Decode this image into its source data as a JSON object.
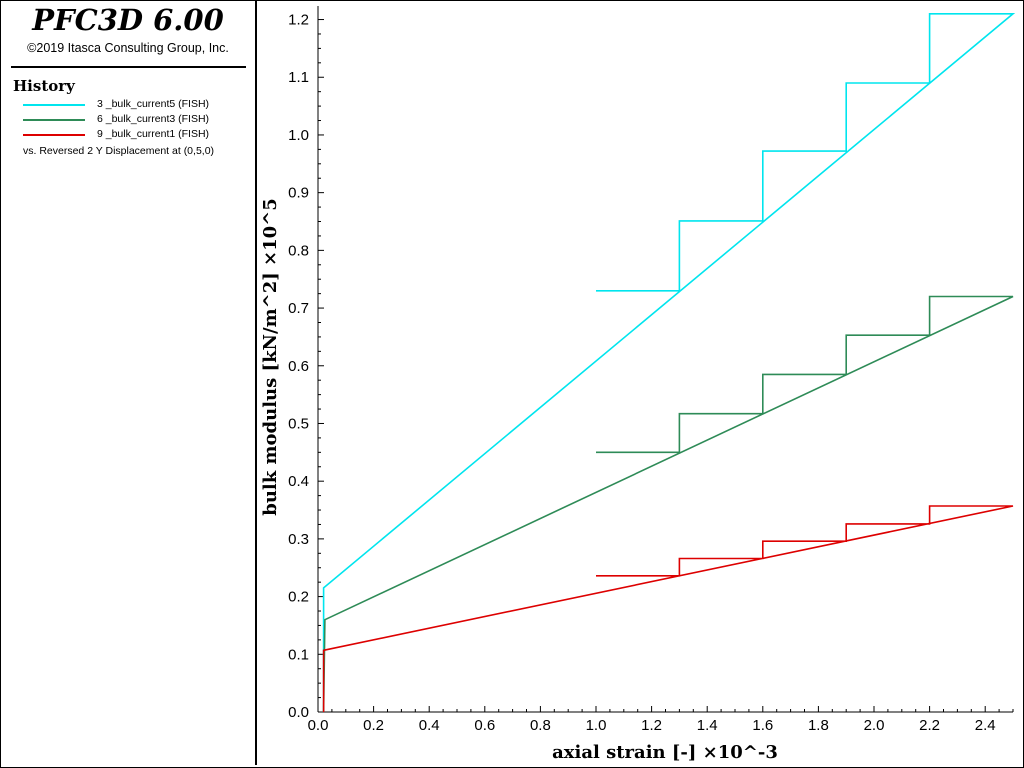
{
  "header": {
    "app_title": "PFC3D 6.00",
    "copyright": "©2019 Itasca Consulting Group, Inc."
  },
  "legend": {
    "title": "History",
    "entries": [
      {
        "label": "3 _bulk_current5 (FISH)",
        "color": "#00e5ee"
      },
      {
        "label": "6 _bulk_current3 (FISH)",
        "color": "#2e8b57"
      },
      {
        "label": "9 _bulk_current1 (FISH)",
        "color": "#dd0000"
      }
    ],
    "vs_text": "vs. Reversed 2 Y Displacement at (0,5,0)"
  },
  "chart_data": {
    "type": "line",
    "xlabel": "axial strain [-] ×10^-3",
    "ylabel": "bulk modulus [kN/m^2] ×10^5",
    "xlim": [
      0,
      2.5
    ],
    "ylim": [
      0,
      1.22
    ],
    "x_ticks": [
      0.0,
      0.2,
      0.4,
      0.6,
      0.8,
      1.0,
      1.2,
      1.4,
      1.6,
      1.8,
      2.0,
      2.2,
      2.4
    ],
    "x_tick_labels": [
      "0.0",
      "0.2",
      "0.4",
      "0.6",
      "0.8",
      "1.0",
      "1.2",
      "1.4",
      "1.6",
      "1.8",
      "2.0",
      "2.2",
      "2.4"
    ],
    "y_ticks": [
      0.0,
      0.1,
      0.2,
      0.3,
      0.4,
      0.5,
      0.6,
      0.7,
      0.8,
      0.9,
      1.0,
      1.1,
      1.2
    ],
    "y_tick_labels": [
      "0.0",
      "0.1",
      "0.2",
      "0.3",
      "0.4",
      "0.5",
      "0.6",
      "0.7",
      "0.8",
      "0.9",
      "1.0",
      "1.1",
      "1.2"
    ],
    "grid": false,
    "series": [
      {
        "name": "3 _bulk_current5 (FISH)",
        "color": "#00e5ee",
        "x": [
          0.02,
          0.02,
          2.5,
          2.2,
          2.2,
          1.9,
          1.9,
          1.6,
          1.6,
          1.3,
          1.3,
          1.0
        ],
        "y": [
          0.0,
          0.215,
          1.21,
          1.21,
          1.09,
          1.09,
          0.972,
          0.972,
          0.851,
          0.851,
          0.73,
          0.73
        ]
      },
      {
        "name": "6 _bulk_current3 (FISH)",
        "color": "#2e8b57",
        "x": [
          0.02,
          0.025,
          2.5,
          2.2,
          2.2,
          1.9,
          1.9,
          1.6,
          1.6,
          1.3,
          1.3,
          1.0
        ],
        "y": [
          0.0,
          0.16,
          0.72,
          0.72,
          0.653,
          0.653,
          0.585,
          0.585,
          0.517,
          0.517,
          0.45,
          0.45
        ]
      },
      {
        "name": "9 _bulk_current1 (FISH)",
        "color": "#dd0000",
        "x": [
          0.02,
          0.02,
          2.5,
          2.2,
          2.2,
          1.9,
          1.9,
          1.6,
          1.6,
          1.3,
          1.3,
          1.0
        ],
        "y": [
          0.0,
          0.107,
          0.357,
          0.357,
          0.326,
          0.326,
          0.296,
          0.296,
          0.266,
          0.266,
          0.236,
          0.236
        ]
      }
    ]
  }
}
